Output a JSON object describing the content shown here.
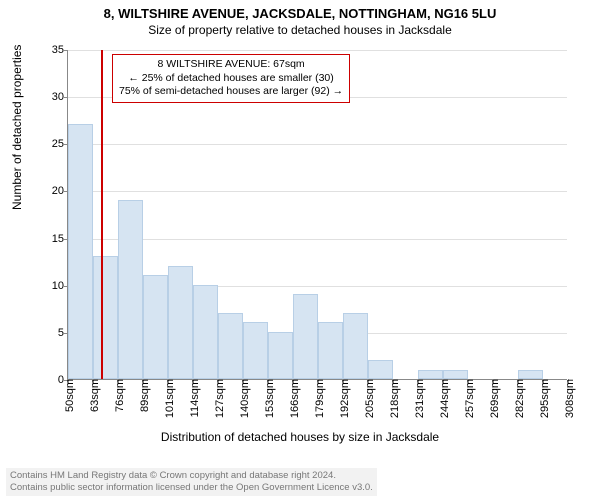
{
  "title_line1": "8, WILTSHIRE AVENUE, JACKSDALE, NOTTINGHAM, NG16 5LU",
  "title_line2": "Size of property relative to detached houses in Jacksdale",
  "ylabel": "Number of detached properties",
  "xlabel": "Distribution of detached houses by size in Jacksdale",
  "chart": {
    "type": "histogram",
    "ylim": [
      0,
      35
    ],
    "ytick_step": 5,
    "yticks": [
      0,
      5,
      10,
      15,
      20,
      25,
      30,
      35
    ],
    "x_start": 50,
    "x_step": 13,
    "x_count": 21,
    "x_labels": [
      "50sqm",
      "63sqm",
      "76sqm",
      "89sqm",
      "101sqm",
      "114sqm",
      "127sqm",
      "140sqm",
      "153sqm",
      "166sqm",
      "179sqm",
      "192sqm",
      "205sqm",
      "218sqm",
      "231sqm",
      "244sqm",
      "257sqm",
      "269sqm",
      "282sqm",
      "295sqm",
      "308sqm"
    ],
    "bars": [
      27,
      13,
      19,
      11,
      12,
      10,
      7,
      6,
      5,
      9,
      6,
      7,
      2,
      0,
      1,
      1,
      0,
      0,
      1,
      0
    ],
    "bar_fill": "#d6e4f2",
    "bar_stroke": "#b8cfe6",
    "grid_color": "#e0e0e0",
    "axis_color": "#888888",
    "background_color": "#ffffff",
    "marker_x_value": 67,
    "marker_color": "#cc0000"
  },
  "annotation": {
    "line1": "8 WILTSHIRE AVENUE: 67sqm",
    "line2": "← 25% of detached houses are smaller (30)",
    "line3": "75% of semi-detached houses are larger (92) →",
    "border_color": "#cc0000"
  },
  "footer": {
    "line1": "Contains HM Land Registry data © Crown copyright and database right 2024.",
    "line2": "Contains public sector information licensed under the Open Government Licence v3.0."
  },
  "fonts": {
    "title_size_pt": 13,
    "subtitle_size_pt": 12,
    "axis_label_size_pt": 12,
    "tick_size_pt": 11,
    "annotation_size_pt": 10.5,
    "footer_size_pt": 9.5
  }
}
